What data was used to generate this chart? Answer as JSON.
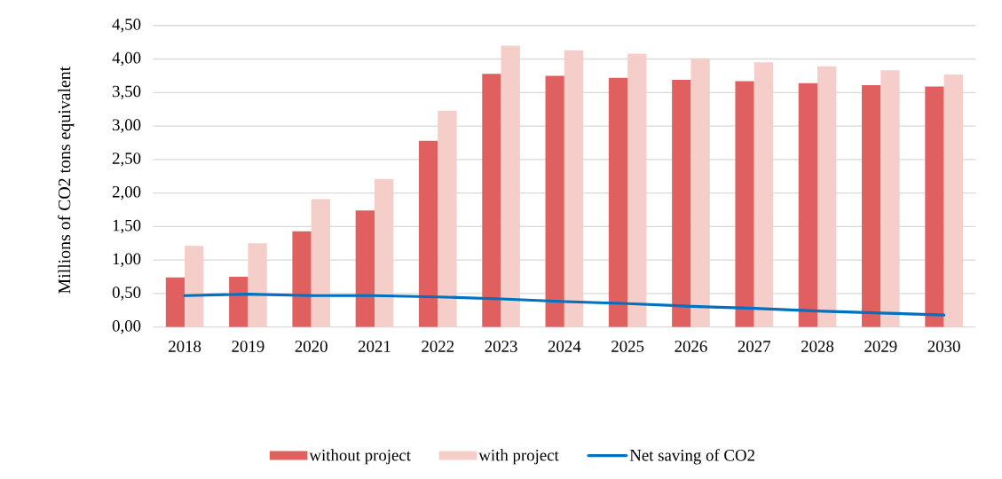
{
  "chart_data": {
    "type": "bar",
    "ylabel": "Millions of CO2 tons equivalent",
    "categories": [
      "2018",
      "2019",
      "2020",
      "2021",
      "2022",
      "2023",
      "2024",
      "2025",
      "2026",
      "2027",
      "2028",
      "2029",
      "2030"
    ],
    "series": [
      {
        "name": "without project",
        "color": "#e0605f",
        "values": [
          0.74,
          0.75,
          1.43,
          1.74,
          2.78,
          3.78,
          3.75,
          3.72,
          3.69,
          3.67,
          3.64,
          3.61,
          3.59
        ]
      },
      {
        "name": "with project",
        "color": "#f5cdc9",
        "values": [
          1.21,
          1.25,
          1.91,
          2.21,
          3.23,
          4.2,
          4.13,
          4.08,
          4.01,
          3.95,
          3.89,
          3.83,
          3.77
        ]
      },
      {
        "name": "Net saving of CO2",
        "type": "line",
        "color": "#0070c0",
        "values": [
          0.47,
          0.49,
          0.47,
          0.47,
          0.45,
          0.42,
          0.38,
          0.35,
          0.31,
          0.28,
          0.24,
          0.21,
          0.18
        ]
      }
    ],
    "ylim": [
      0,
      4.5
    ],
    "yticks": [
      {
        "value": 0,
        "label": "0,00"
      },
      {
        "value": 0.5,
        "label": "0,50"
      },
      {
        "value": 1,
        "label": "1,00"
      },
      {
        "value": 1.5,
        "label": "1,50"
      },
      {
        "value": 2,
        "label": "2,00"
      },
      {
        "value": 2.5,
        "label": "2,50"
      },
      {
        "value": 3,
        "label": "3,00"
      },
      {
        "value": 3.5,
        "label": "3,50"
      },
      {
        "value": 4,
        "label": "4,00"
      },
      {
        "value": 4.5,
        "label": "4,50"
      }
    ],
    "grid": "y",
    "legend": "bottom",
    "line_style": "solid"
  }
}
